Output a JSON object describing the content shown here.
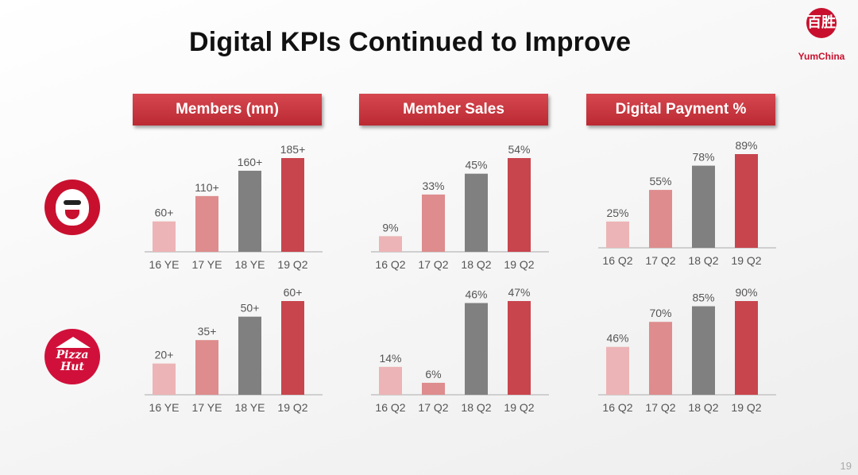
{
  "title": "Digital KPIs Continued to Improve",
  "brand": {
    "mark": "百胜",
    "name": "YumChina"
  },
  "page_number": "19",
  "panels": [
    {
      "header": "Members (mn)"
    },
    {
      "header": "Member Sales"
    },
    {
      "header": "Digital Payment %"
    }
  ],
  "rows": [
    {
      "brand_icon": "kfc-logo-icon"
    },
    {
      "brand_icon": "pizza-hut-logo-icon",
      "logo_text": "Pizza Hut"
    }
  ],
  "colors": {
    "light": "#ecb4b6",
    "mid": "#de8c8d",
    "gray": "#808080",
    "red": "#c8454d",
    "header": "#c8383f"
  },
  "chart_data": [
    {
      "type": "bar",
      "panel": "Members (mn)",
      "row": "KFC",
      "categories": [
        "16 YE",
        "17 YE",
        "18 YE",
        "19 Q2"
      ],
      "values": [
        60,
        110,
        160,
        185
      ],
      "labels": [
        "60+",
        "110+",
        "160+",
        "185+"
      ]
    },
    {
      "type": "bar",
      "panel": "Member Sales",
      "row": "KFC",
      "categories": [
        "16 Q2",
        "17 Q2",
        "18 Q2",
        "19 Q2"
      ],
      "values": [
        9,
        33,
        45,
        54
      ],
      "labels": [
        "9%",
        "33%",
        "45%",
        "54%"
      ]
    },
    {
      "type": "bar",
      "panel": "Digital Payment %",
      "row": "KFC",
      "categories": [
        "16 Q2",
        "17 Q2",
        "18 Q2",
        "19 Q2"
      ],
      "values": [
        25,
        55,
        78,
        89
      ],
      "labels": [
        "25%",
        "55%",
        "78%",
        "89%"
      ]
    },
    {
      "type": "bar",
      "panel": "Members (mn)",
      "row": "Pizza Hut",
      "categories": [
        "16 YE",
        "17 YE",
        "18 YE",
        "19 Q2"
      ],
      "values": [
        20,
        35,
        50,
        60
      ],
      "labels": [
        "20+",
        "35+",
        "50+",
        "60+"
      ]
    },
    {
      "type": "bar",
      "panel": "Member Sales",
      "row": "Pizza Hut",
      "categories": [
        "16 Q2",
        "17 Q2",
        "18 Q2",
        "19 Q2"
      ],
      "values": [
        14,
        6,
        46,
        47
      ],
      "labels": [
        "14%",
        "6%",
        "46%",
        "47%"
      ]
    },
    {
      "type": "bar",
      "panel": "Digital Payment %",
      "row": "Pizza Hut",
      "categories": [
        "16 Q2",
        "17 Q2",
        "18 Q2",
        "19 Q2"
      ],
      "values": [
        46,
        70,
        85,
        90
      ],
      "labels": [
        "46%",
        "70%",
        "85%",
        "90%"
      ]
    }
  ]
}
